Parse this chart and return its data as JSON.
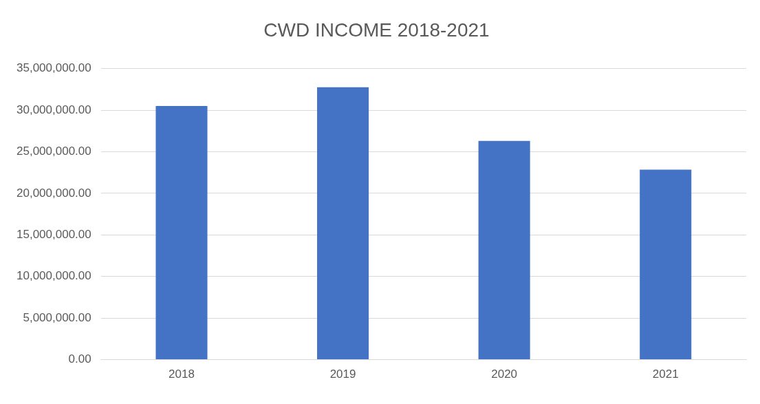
{
  "chart_data": {
    "type": "bar",
    "title": "CWD INCOME 2018-2021",
    "categories": [
      "2018",
      "2019",
      "2020",
      "2021"
    ],
    "values": [
      30500000,
      32750000,
      26300000,
      22850000
    ],
    "color": "#4472c4",
    "ylim": [
      0,
      35000000
    ],
    "yticks": [
      {
        "value": 0,
        "label": "0.00"
      },
      {
        "value": 5000000,
        "label": "5,000,000.00"
      },
      {
        "value": 10000000,
        "label": "10,000,000.00"
      },
      {
        "value": 15000000,
        "label": "15,000,000.00"
      },
      {
        "value": 20000000,
        "label": "20,000,000.00"
      },
      {
        "value": 25000000,
        "label": "25,000,000.00"
      },
      {
        "value": 30000000,
        "label": "30,000,000.00"
      },
      {
        "value": 35000000,
        "label": "35,000,000.00"
      }
    ],
    "grid": "y",
    "legend": false
  }
}
